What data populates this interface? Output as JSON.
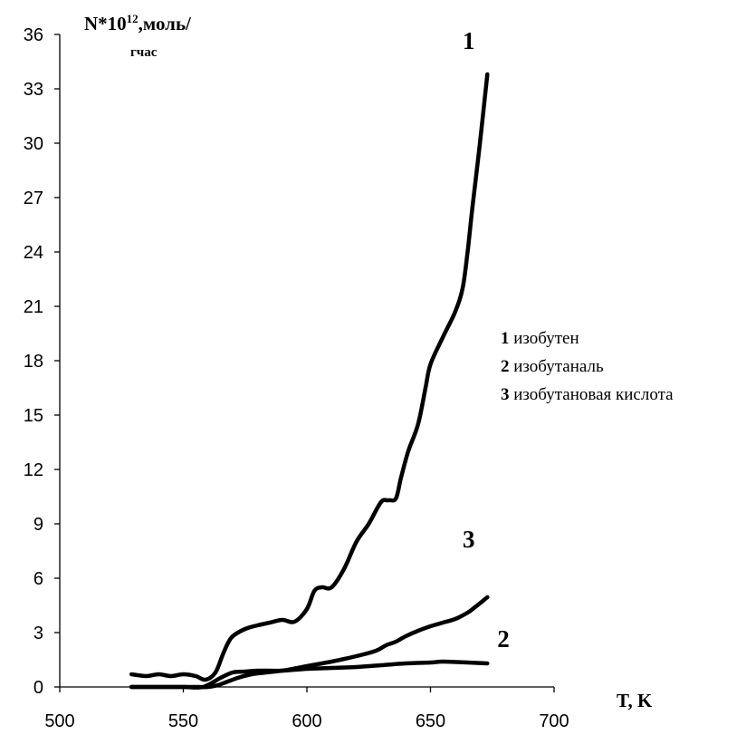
{
  "chart_data": {
    "type": "line",
    "xlabel": "T, K",
    "ylabel_parts": {
      "base": "N*10",
      "sup": "12",
      "rest": ",моль/",
      "line2": "гчас"
    },
    "xlim": [
      500,
      700
    ],
    "ylim": [
      0,
      36
    ],
    "xticks": [
      500,
      550,
      600,
      650,
      700
    ],
    "yticks": [
      0,
      3,
      6,
      9,
      12,
      15,
      18,
      21,
      24,
      27,
      30,
      33,
      36
    ],
    "grid": false,
    "legend_placement": "right",
    "series": [
      {
        "id": "1",
        "name": "изобутен",
        "x": [
          529,
          535,
          540,
          545,
          550,
          555,
          559,
          563,
          566,
          568,
          570,
          575,
          580,
          585,
          590,
          595,
          600,
          603,
          606,
          610,
          615,
          620,
          625,
          630,
          633,
          636,
          638,
          641,
          645,
          648,
          650,
          655,
          660,
          663,
          665,
          667,
          670,
          673
        ],
        "y": [
          0.7,
          0.6,
          0.7,
          0.6,
          0.7,
          0.6,
          0.4,
          0.8,
          1.8,
          2.4,
          2.8,
          3.2,
          3.4,
          3.55,
          3.7,
          3.6,
          4.3,
          5.3,
          5.5,
          5.5,
          6.5,
          8.0,
          9.0,
          10.2,
          10.3,
          10.4,
          11.5,
          13.0,
          14.5,
          16.5,
          17.8,
          19.3,
          20.7,
          22.0,
          24.0,
          26.5,
          30.0,
          33.8
        ]
      },
      {
        "id": "2",
        "name": "изобутаналь",
        "x": [
          529,
          540,
          550,
          558,
          565,
          570,
          575,
          580,
          590,
          600,
          610,
          620,
          630,
          640,
          650,
          655,
          665,
          673
        ],
        "y": [
          0.0,
          0.0,
          0.0,
          0.0,
          0.5,
          0.8,
          0.85,
          0.9,
          0.9,
          1.0,
          1.05,
          1.1,
          1.2,
          1.3,
          1.35,
          1.4,
          1.35,
          1.3
        ]
      },
      {
        "id": "3",
        "name": "изобутановая кислота",
        "x": [
          529,
          540,
          550,
          556,
          560,
          564,
          568,
          572,
          576,
          580,
          590,
          600,
          610,
          620,
          628,
          632,
          636,
          640,
          645,
          650,
          655,
          660,
          665,
          668,
          673
        ],
        "y": [
          0.0,
          0.0,
          0.0,
          0.0,
          0.0,
          0.1,
          0.3,
          0.5,
          0.65,
          0.75,
          0.9,
          1.15,
          1.4,
          1.7,
          2.0,
          2.3,
          2.5,
          2.8,
          3.1,
          3.35,
          3.55,
          3.75,
          4.1,
          4.4,
          4.95
        ]
      }
    ],
    "curve_labels": [
      {
        "text": "1",
        "x": 663,
        "y": 35.2
      },
      {
        "text": "3",
        "x": 663,
        "y": 7.7
      },
      {
        "text": "2",
        "x": 677,
        "y": 2.2
      }
    ],
    "legend": [
      {
        "num": "1",
        "text": " изобутен"
      },
      {
        "num": "2",
        "text": " изобутаналь"
      },
      {
        "num": "3",
        "text": " изобутановая кислота"
      }
    ]
  }
}
